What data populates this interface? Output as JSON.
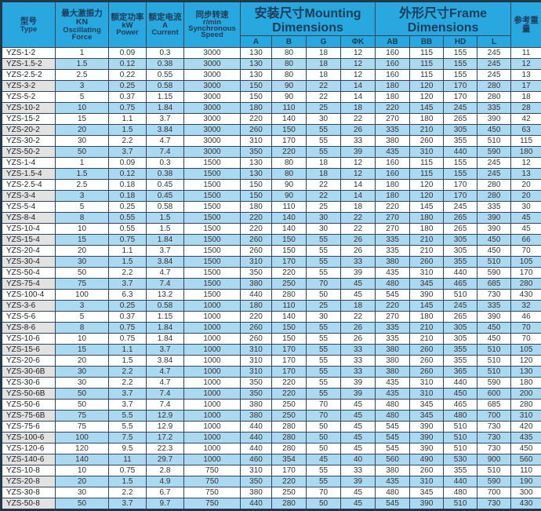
{
  "colors": {
    "header_bg": "#29a8e0",
    "header_text": "#1c3c57",
    "row_alt_bg": "#abd9f1",
    "type_cell_alt_bg": "#e2e2e2",
    "border": "#33475c",
    "body_text": "#333333"
  },
  "table": {
    "header": {
      "type": {
        "cn": "型号",
        "en": "Type"
      },
      "force": {
        "cn": "最大激振力KN",
        "en1": "Oscillating",
        "en2": "Force"
      },
      "power": {
        "cn": "额定功率",
        "en1": "kW",
        "en2": "Power"
      },
      "current": {
        "cn": "额定电流",
        "en1": "A",
        "en2": "Current"
      },
      "speed": {
        "cn": "同步转速",
        "en1": "r/min",
        "en2": "Synchronous",
        "en3": "Speed"
      },
      "mounting": {
        "label": "安装尺寸Mounting Dimensions"
      },
      "frame": {
        "label": "外形尺寸Frame Dimensions"
      },
      "weight": {
        "cn": "参考重量"
      },
      "sub": {
        "a": "A",
        "b": "B",
        "g": "G",
        "k": "ΦK",
        "ab": "AB",
        "bb": "BB",
        "hd": "HD",
        "l": "L"
      }
    },
    "field_names": [
      "type",
      "force",
      "power",
      "current",
      "speed",
      "a",
      "b",
      "g",
      "k",
      "ab",
      "bb",
      "hd",
      "l",
      "weight"
    ],
    "rows": [
      [
        "YZS-1-2",
        "1",
        "0.09",
        "0.3",
        "3000",
        "130",
        "80",
        "18",
        "12",
        "160",
        "115",
        "155",
        "245",
        "11"
      ],
      [
        "YZS-1.5-2",
        "1.5",
        "0.12",
        "0.38",
        "3000",
        "130",
        "80",
        "18",
        "12",
        "160",
        "115",
        "155",
        "245",
        "12"
      ],
      [
        "YZS-2.5-2",
        "2.5",
        "0.22",
        "0.55",
        "3000",
        "130",
        "80",
        "18",
        "12",
        "160",
        "115",
        "155",
        "245",
        "13"
      ],
      [
        "YZS-3-2",
        "3",
        "0.25",
        "0.58",
        "3000",
        "150",
        "90",
        "22",
        "14",
        "180",
        "120",
        "170",
        "280",
        "17"
      ],
      [
        "YZS-5-2",
        "5",
        "0.37",
        "1.15",
        "3000",
        "150",
        "90",
        "22",
        "14",
        "180",
        "120",
        "170",
        "280",
        "18"
      ],
      [
        "YZS-10-2",
        "10",
        "0.75",
        "1.84",
        "3000",
        "180",
        "110",
        "25",
        "18",
        "220",
        "145",
        "245",
        "335",
        "28"
      ],
      [
        "YZS-15-2",
        "15",
        "1.1",
        "3.7",
        "3000",
        "220",
        "140",
        "30",
        "22",
        "270",
        "180",
        "265",
        "390",
        "42"
      ],
      [
        "YZS-20-2",
        "20",
        "1.5",
        "3.84",
        "3000",
        "260",
        "150",
        "55",
        "26",
        "335",
        "210",
        "305",
        "450",
        "63"
      ],
      [
        "YZS-30-2",
        "30",
        "2.2",
        "4.7",
        "3000",
        "310",
        "170",
        "55",
        "33",
        "380",
        "260",
        "355",
        "510",
        "115"
      ],
      [
        "YZS-50-2",
        "50",
        "3.7",
        "7.4",
        "3000",
        "350",
        "220",
        "55",
        "39",
        "435",
        "310",
        "440",
        "590",
        "180"
      ],
      [
        "YZS-1-4",
        "1",
        "0.09",
        "0.3",
        "1500",
        "130",
        "80",
        "18",
        "12",
        "160",
        "115",
        "155",
        "245",
        "12"
      ],
      [
        "YZS-1.5-4",
        "1.5",
        "0.12",
        "0.38",
        "1500",
        "130",
        "80",
        "18",
        "12",
        "160",
        "115",
        "155",
        "245",
        "13"
      ],
      [
        "YZS-2.5-4",
        "2.5",
        "0.18",
        "0.45",
        "1500",
        "150",
        "90",
        "22",
        "14",
        "180",
        "120",
        "170",
        "280",
        "20"
      ],
      [
        "YZS-3-4",
        "3",
        "0.18",
        "0.45",
        "1500",
        "150",
        "90",
        "22",
        "14",
        "180",
        "120",
        "170",
        "280",
        "20"
      ],
      [
        "YZS-5-4",
        "5",
        "0.25",
        "0.58",
        "1500",
        "180",
        "110",
        "25",
        "18",
        "220",
        "145",
        "245",
        "335",
        "30"
      ],
      [
        "YZS-8-4",
        "8",
        "0.55",
        "1.5",
        "1500",
        "220",
        "140",
        "30",
        "22",
        "270",
        "180",
        "265",
        "390",
        "45"
      ],
      [
        "YZS-10-4",
        "10",
        "0.55",
        "1.5",
        "1500",
        "220",
        "140",
        "30",
        "22",
        "270",
        "180",
        "265",
        "390",
        "45"
      ],
      [
        "YZS-15-4",
        "15",
        "0.75",
        "1.84",
        "1500",
        "260",
        "150",
        "55",
        "26",
        "335",
        "210",
        "305",
        "450",
        "66"
      ],
      [
        "YZS-20-4",
        "20",
        "1.1",
        "3.7",
        "1500",
        "260",
        "150",
        "55",
        "26",
        "335",
        "210",
        "305",
        "450",
        "70"
      ],
      [
        "YZS-30-4",
        "30",
        "1.5",
        "3.84",
        "1500",
        "310",
        "170",
        "55",
        "33",
        "380",
        "260",
        "355",
        "510",
        "105"
      ],
      [
        "YZS-50-4",
        "50",
        "2.2",
        "4.7",
        "1500",
        "350",
        "220",
        "55",
        "39",
        "435",
        "310",
        "440",
        "590",
        "170"
      ],
      [
        "YZS-75-4",
        "75",
        "3.7",
        "7.4",
        "1500",
        "380",
        "250",
        "70",
        "45",
        "480",
        "345",
        "465",
        "685",
        "280"
      ],
      [
        "YZS-100-4",
        "100",
        "6.3",
        "13.2",
        "1500",
        "440",
        "280",
        "50",
        "45",
        "545",
        "390",
        "510",
        "730",
        "430"
      ],
      [
        "YZS-3-6",
        "3",
        "0.25",
        "0.58",
        "1000",
        "180",
        "110",
        "25",
        "18",
        "220",
        "145",
        "245",
        "335",
        "32"
      ],
      [
        "YZS-5-6",
        "5",
        "0.37",
        "1.15",
        "1000",
        "220",
        "140",
        "30",
        "22",
        "270",
        "180",
        "265",
        "390",
        "46"
      ],
      [
        "YZS-8-6",
        "8",
        "0.75",
        "1.84",
        "1000",
        "260",
        "150",
        "55",
        "26",
        "335",
        "210",
        "305",
        "450",
        "70"
      ],
      [
        "YZS-10-6",
        "10",
        "0.75",
        "1.84",
        "1000",
        "260",
        "150",
        "55",
        "26",
        "335",
        "210",
        "305",
        "450",
        "70"
      ],
      [
        "YZS-15-6",
        "15",
        "1.1",
        "3.7",
        "1000",
        "310",
        "170",
        "55",
        "33",
        "380",
        "260",
        "355",
        "510",
        "105"
      ],
      [
        "YZS-20-6",
        "20",
        "1.5",
        "3.84",
        "1000",
        "310",
        "170",
        "55",
        "33",
        "380",
        "260",
        "355",
        "510",
        "120"
      ],
      [
        "YZS-30-6B",
        "30",
        "2.2",
        "4.7",
        "1000",
        "310",
        "170",
        "55",
        "33",
        "380",
        "260",
        "365",
        "510",
        "130"
      ],
      [
        "YZS-30-6",
        "30",
        "2.2",
        "4.7",
        "1000",
        "350",
        "220",
        "55",
        "39",
        "435",
        "310",
        "440",
        "590",
        "180"
      ],
      [
        "YZS-50-6B",
        "50",
        "3.7",
        "7.4",
        "1000",
        "350",
        "220",
        "55",
        "39",
        "435",
        "310",
        "450",
        "600",
        "200"
      ],
      [
        "YZS-50-6",
        "50",
        "3.7",
        "7.4",
        "1000",
        "380",
        "250",
        "70",
        "45",
        "480",
        "345",
        "465",
        "685",
        "280"
      ],
      [
        "YZS-75-6B",
        "75",
        "5.5",
        "12.9",
        "1000",
        "380",
        "250",
        "70",
        "45",
        "480",
        "345",
        "480",
        "700",
        "310"
      ],
      [
        "YZS-75-6",
        "75",
        "5.5",
        "12.9",
        "1000",
        "440",
        "280",
        "50",
        "45",
        "545",
        "390",
        "510",
        "730",
        "420"
      ],
      [
        "YZS-100-6",
        "100",
        "7.5",
        "17.2",
        "1000",
        "440",
        "280",
        "50",
        "45",
        "545",
        "390",
        "510",
        "730",
        "435"
      ],
      [
        "YZS-120-6",
        "120",
        "9.5",
        "22.3",
        "1000",
        "440",
        "280",
        "50",
        "45",
        "545",
        "390",
        "510",
        "730",
        "450"
      ],
      [
        "YZS-140-6",
        "140",
        "11",
        "29.7",
        "1000",
        "460",
        "354",
        "45",
        "40",
        "560",
        "490",
        "530",
        "900",
        "560"
      ],
      [
        "YZS-10-8",
        "10",
        "0.75",
        "2.8",
        "750",
        "310",
        "170",
        "55",
        "33",
        "380",
        "260",
        "355",
        "510",
        "110"
      ],
      [
        "YZS-20-8",
        "20",
        "1.5",
        "4.9",
        "750",
        "350",
        "220",
        "55",
        "39",
        "435",
        "310",
        "440",
        "590",
        "190"
      ],
      [
        "YZS-30-8",
        "30",
        "2.2",
        "6.7",
        "750",
        "380",
        "250",
        "70",
        "45",
        "480",
        "345",
        "480",
        "700",
        "300"
      ],
      [
        "YZS-50-8",
        "50",
        "3.7",
        "9.7",
        "750",
        "440",
        "280",
        "50",
        "45",
        "545",
        "390",
        "510",
        "730",
        "430"
      ]
    ]
  }
}
